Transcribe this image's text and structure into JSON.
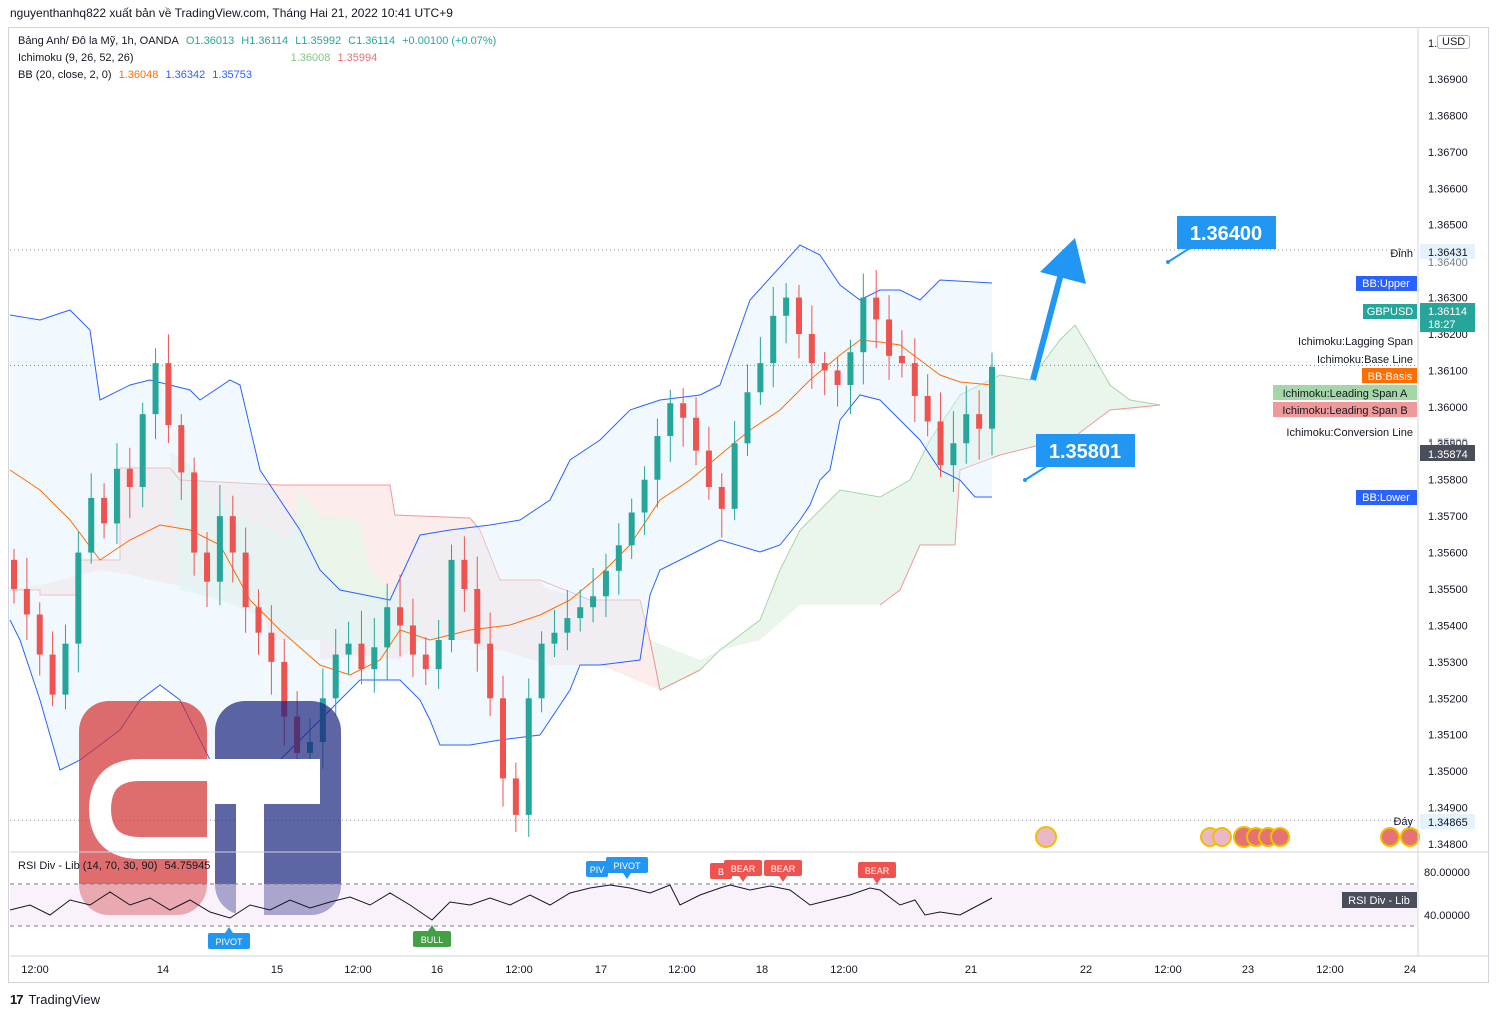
{
  "header": {
    "text": "nguyenthanhq822 xuất bản về TradingView.com, Tháng Hai 21, 2022 10:41 UTC+9"
  },
  "legend": {
    "symbol": "Bảng Anh/ Đô la Mỹ, 1h, OANDA",
    "o": "O1.36013",
    "h": "H1.36114",
    "l": "L1.35992",
    "c": "C1.36114",
    "chg": "+0.00100 (+0.07%)",
    "ichimoku_label": "Ichimoku (9, 26, 52, 26)",
    "ichimoku_a": "1.36008",
    "ichimoku_b": "1.35994",
    "bb_label": "BB (20, close, 2, 0)",
    "bb_basis": "1.36048",
    "bb_upper": "1.36342",
    "bb_lower": "1.35753",
    "rsi_label": "RSI Div - Lib (14, 70, 30, 90)",
    "rsi_value": "54.75945"
  },
  "currency": "USD",
  "footer": {
    "brand": "TradingView"
  },
  "colors": {
    "up": "#26a69a",
    "down": "#ef5350",
    "bb_line": "#2962ff",
    "bb_fill": "#e3f2fd",
    "basis": "#ff6d00",
    "span_a": "#a5d6a7",
    "span_b": "#ef9a9a",
    "accent": "#2196f3",
    "rsi_fill": "#f3e5f5"
  },
  "price_axis": {
    "labels": [
      "1.36900",
      "1.36800",
      "1.36700",
      "1.36600",
      "1.36500",
      "1.36300",
      "1.36200",
      "1.36100",
      "1.36000",
      "1.35900",
      "1.35800",
      "1.35700",
      "1.35600",
      "1.35500",
      "1.35400",
      "1.35300",
      "1.35200",
      "1.35100",
      "1.35000",
      "1.34900",
      "1.34800"
    ],
    "values": [
      1.369,
      1.368,
      1.367,
      1.366,
      1.365,
      1.363,
      1.362,
      1.361,
      1.36,
      1.359,
      1.358,
      1.357,
      1.356,
      1.355,
      1.354,
      1.353,
      1.352,
      1.351,
      1.35,
      1.349,
      1.348
    ],
    "top_clipped": "1.3"
  },
  "markers": {
    "high_label": "Đỉnh",
    "high_value": "1.36431",
    "high_price": 1.36431,
    "low_label": "Đáy",
    "low_value": "1.34865",
    "low_price": 1.34865,
    "bb_upper_tag": "BB:Upper",
    "bb_lower_tag": "BB:Lower",
    "bb_basis_tag": "BB:Basis",
    "symbol_tag": "GBPUSD",
    "last_price": "1.36114",
    "countdown": "18:27",
    "last_price_num": 1.36114,
    "lagging": "Ichimoku:Lagging Span",
    "base": "Ichimoku:Base Line",
    "span_a": "Ichimoku:Leading Span A",
    "span_b": "Ichimoku:Leading Span B",
    "conversion": "Ichimoku:Conversion Line",
    "crosshair_price": "1.35874",
    "clipped_tick": "1.36400",
    "clipped_tick2": "1.35900"
  },
  "targets": {
    "target_high": "1.36400",
    "target_high_price": 1.364,
    "target_low": "1.35801",
    "target_low_price": 1.35801
  },
  "rsi": {
    "levels": [
      "80.00000",
      "40.00000"
    ],
    "tag": "RSI Div - Lib",
    "badges": [
      "PIVOT",
      "PIVOT",
      "PIVOT",
      "BULL",
      "BEAR",
      "BEAR",
      "BEAR",
      "BEAR"
    ]
  },
  "time_axis": {
    "labels": [
      "12:00",
      "14",
      "15",
      "12:00",
      "16",
      "12:00",
      "17",
      "12:00",
      "18",
      "12:00",
      "21",
      "22",
      "12:00",
      "23",
      "12:00",
      "24"
    ]
  },
  "chart_data": {
    "type": "candlestick",
    "symbol": "Bảng Anh/ Đô la Mỹ, 1h, OANDA",
    "ylim": [
      1.3475,
      1.37
    ],
    "y_ticks": [
      1.369,
      1.368,
      1.367,
      1.366,
      1.365,
      1.364,
      1.363,
      1.362,
      1.361,
      1.36,
      1.359,
      1.358,
      1.357,
      1.356,
      1.355,
      1.354,
      1.353,
      1.352,
      1.351,
      1.35,
      1.349,
      1.348
    ],
    "x_tick_labels": [
      "12:00",
      "14",
      "15",
      "12:00",
      "16",
      "12:00",
      "17",
      "12:00",
      "18",
      "12:00",
      "21",
      "22",
      "12:00",
      "23",
      "12:00",
      "24"
    ],
    "close_series": [
      1.355,
      1.3543,
      1.3532,
      1.3521,
      1.3535,
      1.356,
      1.3575,
      1.3568,
      1.3583,
      1.3578,
      1.3598,
      1.3612,
      1.3595,
      1.3582,
      1.356,
      1.3552,
      1.357,
      1.356,
      1.3545,
      1.3538,
      1.353,
      1.3515,
      1.3505,
      1.3508,
      1.352,
      1.3532,
      1.3535,
      1.3528,
      1.3534,
      1.3545,
      1.354,
      1.3532,
      1.3528,
      1.3536,
      1.3558,
      1.355,
      1.3535,
      1.352,
      1.3498,
      1.3488,
      1.352,
      1.3535,
      1.3538,
      1.3542,
      1.3545,
      1.3548,
      1.3555,
      1.3562,
      1.3571,
      1.358,
      1.3592,
      1.3601,
      1.3597,
      1.3588,
      1.3578,
      1.3572,
      1.359,
      1.3604,
      1.3612,
      1.3625,
      1.363,
      1.362,
      1.3612,
      1.361,
      1.3606,
      1.3615,
      1.363,
      1.3624,
      1.3614,
      1.3612,
      1.3603,
      1.3596,
      1.3584,
      1.359,
      1.3598,
      1.3594,
      1.3611
    ],
    "bb_upper_end": 1.36342,
    "bb_basis_end": 1.36048,
    "bb_lower_end": 1.35753,
    "rsi_ylim": [
      20,
      100
    ],
    "rsi_levels": [
      80,
      40
    ],
    "rsi_last": 54.75945,
    "high": 1.36431,
    "low": 1.34865
  }
}
